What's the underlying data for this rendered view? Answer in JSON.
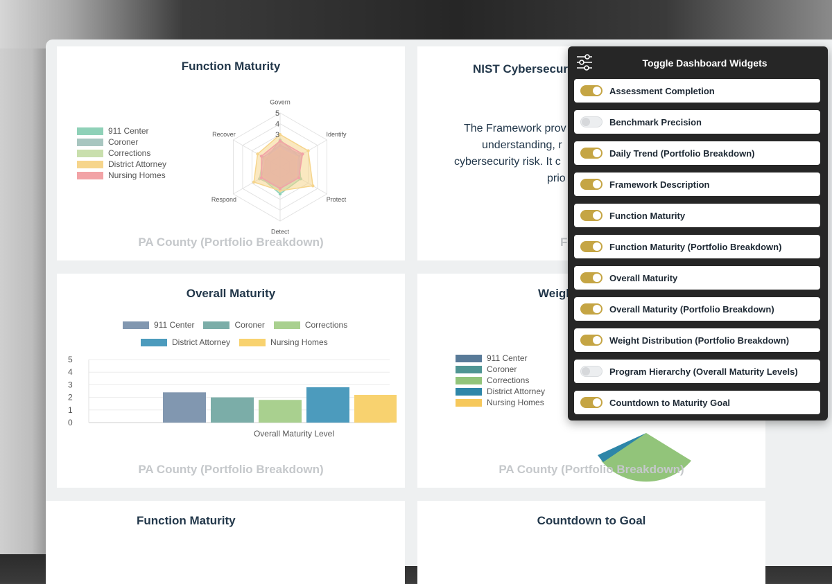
{
  "cards": {
    "function_maturity": {
      "title": "Function Maturity",
      "footer": "PA County (Portfolio Breakdown)",
      "legend": [
        "911 Center",
        "Coroner",
        "Corrections",
        "District Attorney",
        "Nursing Homes"
      ],
      "legend_colors": [
        "#8fd1b8",
        "#a8c6c0",
        "#c9dfad",
        "#f6d58c",
        "#f2a3a6"
      ]
    },
    "framework": {
      "title": "NIST Cybersecurity",
      "body_lines": [
        "The Framework prov",
        "understanding, r",
        "cybersecurity risk. It c",
        "prio"
      ],
      "footer": "F"
    },
    "overall_maturity": {
      "title": "Overall Maturity",
      "footer": "PA County (Portfolio Breakdown)",
      "legend_row1": [
        "911 Center",
        "Coroner",
        "Corrections"
      ],
      "legend_row2": [
        "District Attorney",
        "Nursing Homes"
      ]
    },
    "weight_distribution": {
      "title": "Weigh",
      "footer": "PA County (Portfolio Breakdown)",
      "legend": [
        "911 Center",
        "Coroner",
        "Corrections",
        "District Attorney",
        "Nursing Homes"
      ],
      "legend_colors": [
        "#587a98",
        "#4f9593",
        "#92c47a",
        "#2e86a8",
        "#f6c85b"
      ]
    },
    "function_maturity_2": {
      "title": "Function Maturity"
    },
    "countdown": {
      "title": "Countdown to Goal"
    }
  },
  "chart_data": [
    {
      "type": "radar",
      "axes": [
        "Govern",
        "Identify",
        "Protect",
        "Detect",
        "Respond",
        "Recover"
      ],
      "scale_ticks": [
        "5",
        "4",
        "3"
      ],
      "series": [
        {
          "name": "911 Center",
          "values": [
            2.5,
            2.0,
            2.2,
            2.5,
            2.0,
            1.5
          ]
        },
        {
          "name": "Coroner",
          "values": [
            2.0,
            2.3,
            2.0,
            2.0,
            2.2,
            1.8
          ]
        },
        {
          "name": "Corrections",
          "values": [
            1.7,
            1.8,
            1.7,
            1.7,
            1.8,
            1.6
          ]
        },
        {
          "name": "District Attorney",
          "values": [
            3.0,
            3.0,
            3.5,
            2.2,
            2.8,
            2.4
          ]
        },
        {
          "name": "Nursing Homes",
          "values": [
            2.4,
            2.4,
            2.0,
            2.0,
            2.0,
            2.0
          ]
        }
      ],
      "colors": [
        "#8fd1b8",
        "#a8c6c0",
        "#c9dfad",
        "#f6d58c",
        "#f2a3a6"
      ]
    },
    {
      "type": "bar",
      "xlabel": "Overall Maturity Level",
      "categories": [
        "911 Center",
        "Coroner",
        "Corrections",
        "District Attorney",
        "Nursing Homes"
      ],
      "values": [
        2.4,
        2.0,
        1.8,
        2.8,
        2.2
      ],
      "ylim": [
        0,
        5
      ],
      "yticks": [
        "0",
        "1",
        "2",
        "3",
        "4",
        "5"
      ],
      "colors": [
        "#8197b0",
        "#7bada8",
        "#a9d08f",
        "#4c9bbd",
        "#f8d26f"
      ]
    }
  ],
  "widget_panel": {
    "title": "Toggle Dashboard Widgets",
    "toggles": [
      {
        "label": "Assessment Completion",
        "on": true
      },
      {
        "label": "Benchmark Precision",
        "on": false
      },
      {
        "label": "Daily Trend (Portfolio Breakdown)",
        "on": true
      },
      {
        "label": "Framework Description",
        "on": true
      },
      {
        "label": "Function Maturity",
        "on": true
      },
      {
        "label": "Function Maturity (Portfolio Breakdown)",
        "on": true
      },
      {
        "label": "Overall Maturity",
        "on": true
      },
      {
        "label": "Overall Maturity (Portfolio Breakdown)",
        "on": true
      },
      {
        "label": "Weight Distribution (Portfolio Breakdown)",
        "on": true
      },
      {
        "label": "Program Hierarchy (Overall Maturity Levels)",
        "on": false
      },
      {
        "label": "Countdown to Maturity Goal",
        "on": true
      }
    ]
  }
}
